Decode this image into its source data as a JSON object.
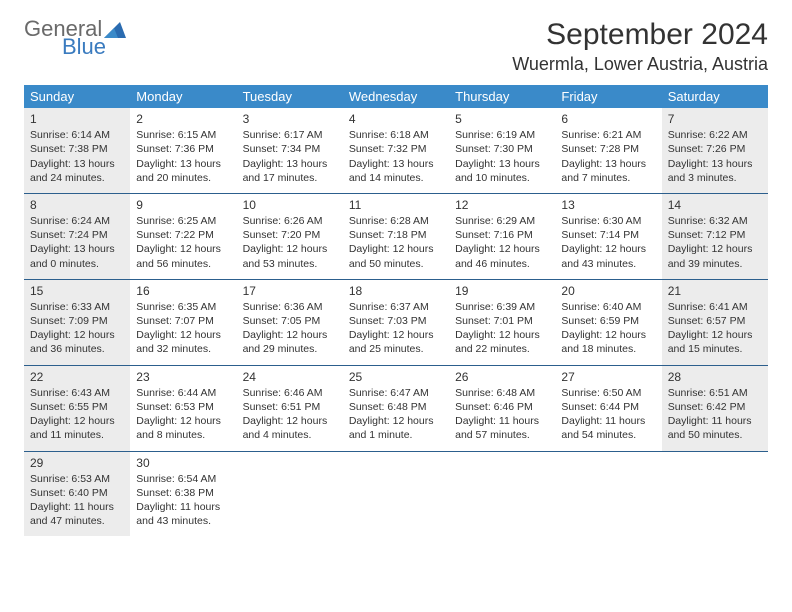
{
  "brand": {
    "line1": "General",
    "line2": "Blue"
  },
  "title": "September 2024",
  "location": "Wuermla, Lower Austria, Austria",
  "colors": {
    "header_bg": "#3a8ac9",
    "header_text": "#ffffff",
    "row_divider": "#2c5f8d",
    "shaded_bg": "#ececec",
    "brand_gray": "#6a6a6a",
    "brand_blue": "#3a7bbf"
  },
  "daysOfWeek": [
    "Sunday",
    "Monday",
    "Tuesday",
    "Wednesday",
    "Thursday",
    "Friday",
    "Saturday"
  ],
  "weeks": [
    [
      {
        "n": "1",
        "shaded": true,
        "sr": "6:14 AM",
        "ss": "7:38 PM",
        "dl": "13 hours and 24 minutes."
      },
      {
        "n": "2",
        "shaded": false,
        "sr": "6:15 AM",
        "ss": "7:36 PM",
        "dl": "13 hours and 20 minutes."
      },
      {
        "n": "3",
        "shaded": false,
        "sr": "6:17 AM",
        "ss": "7:34 PM",
        "dl": "13 hours and 17 minutes."
      },
      {
        "n": "4",
        "shaded": false,
        "sr": "6:18 AM",
        "ss": "7:32 PM",
        "dl": "13 hours and 14 minutes."
      },
      {
        "n": "5",
        "shaded": false,
        "sr": "6:19 AM",
        "ss": "7:30 PM",
        "dl": "13 hours and 10 minutes."
      },
      {
        "n": "6",
        "shaded": false,
        "sr": "6:21 AM",
        "ss": "7:28 PM",
        "dl": "13 hours and 7 minutes."
      },
      {
        "n": "7",
        "shaded": true,
        "sr": "6:22 AM",
        "ss": "7:26 PM",
        "dl": "13 hours and 3 minutes."
      }
    ],
    [
      {
        "n": "8",
        "shaded": true,
        "sr": "6:24 AM",
        "ss": "7:24 PM",
        "dl": "13 hours and 0 minutes."
      },
      {
        "n": "9",
        "shaded": false,
        "sr": "6:25 AM",
        "ss": "7:22 PM",
        "dl": "12 hours and 56 minutes."
      },
      {
        "n": "10",
        "shaded": false,
        "sr": "6:26 AM",
        "ss": "7:20 PM",
        "dl": "12 hours and 53 minutes."
      },
      {
        "n": "11",
        "shaded": false,
        "sr": "6:28 AM",
        "ss": "7:18 PM",
        "dl": "12 hours and 50 minutes."
      },
      {
        "n": "12",
        "shaded": false,
        "sr": "6:29 AM",
        "ss": "7:16 PM",
        "dl": "12 hours and 46 minutes."
      },
      {
        "n": "13",
        "shaded": false,
        "sr": "6:30 AM",
        "ss": "7:14 PM",
        "dl": "12 hours and 43 minutes."
      },
      {
        "n": "14",
        "shaded": true,
        "sr": "6:32 AM",
        "ss": "7:12 PM",
        "dl": "12 hours and 39 minutes."
      }
    ],
    [
      {
        "n": "15",
        "shaded": true,
        "sr": "6:33 AM",
        "ss": "7:09 PM",
        "dl": "12 hours and 36 minutes."
      },
      {
        "n": "16",
        "shaded": false,
        "sr": "6:35 AM",
        "ss": "7:07 PM",
        "dl": "12 hours and 32 minutes."
      },
      {
        "n": "17",
        "shaded": false,
        "sr": "6:36 AM",
        "ss": "7:05 PM",
        "dl": "12 hours and 29 minutes."
      },
      {
        "n": "18",
        "shaded": false,
        "sr": "6:37 AM",
        "ss": "7:03 PM",
        "dl": "12 hours and 25 minutes."
      },
      {
        "n": "19",
        "shaded": false,
        "sr": "6:39 AM",
        "ss": "7:01 PM",
        "dl": "12 hours and 22 minutes."
      },
      {
        "n": "20",
        "shaded": false,
        "sr": "6:40 AM",
        "ss": "6:59 PM",
        "dl": "12 hours and 18 minutes."
      },
      {
        "n": "21",
        "shaded": true,
        "sr": "6:41 AM",
        "ss": "6:57 PM",
        "dl": "12 hours and 15 minutes."
      }
    ],
    [
      {
        "n": "22",
        "shaded": true,
        "sr": "6:43 AM",
        "ss": "6:55 PM",
        "dl": "12 hours and 11 minutes."
      },
      {
        "n": "23",
        "shaded": false,
        "sr": "6:44 AM",
        "ss": "6:53 PM",
        "dl": "12 hours and 8 minutes."
      },
      {
        "n": "24",
        "shaded": false,
        "sr": "6:46 AM",
        "ss": "6:51 PM",
        "dl": "12 hours and 4 minutes."
      },
      {
        "n": "25",
        "shaded": false,
        "sr": "6:47 AM",
        "ss": "6:48 PM",
        "dl": "12 hours and 1 minute."
      },
      {
        "n": "26",
        "shaded": false,
        "sr": "6:48 AM",
        "ss": "6:46 PM",
        "dl": "11 hours and 57 minutes."
      },
      {
        "n": "27",
        "shaded": false,
        "sr": "6:50 AM",
        "ss": "6:44 PM",
        "dl": "11 hours and 54 minutes."
      },
      {
        "n": "28",
        "shaded": true,
        "sr": "6:51 AM",
        "ss": "6:42 PM",
        "dl": "11 hours and 50 minutes."
      }
    ],
    [
      {
        "n": "29",
        "shaded": true,
        "sr": "6:53 AM",
        "ss": "6:40 PM",
        "dl": "11 hours and 47 minutes."
      },
      {
        "n": "30",
        "shaded": false,
        "sr": "6:54 AM",
        "ss": "6:38 PM",
        "dl": "11 hours and 43 minutes."
      },
      {
        "empty": true
      },
      {
        "empty": true
      },
      {
        "empty": true
      },
      {
        "empty": true
      },
      {
        "empty": true
      }
    ]
  ],
  "labels": {
    "sunrise": "Sunrise:",
    "sunset": "Sunset:",
    "daylight": "Daylight:"
  }
}
